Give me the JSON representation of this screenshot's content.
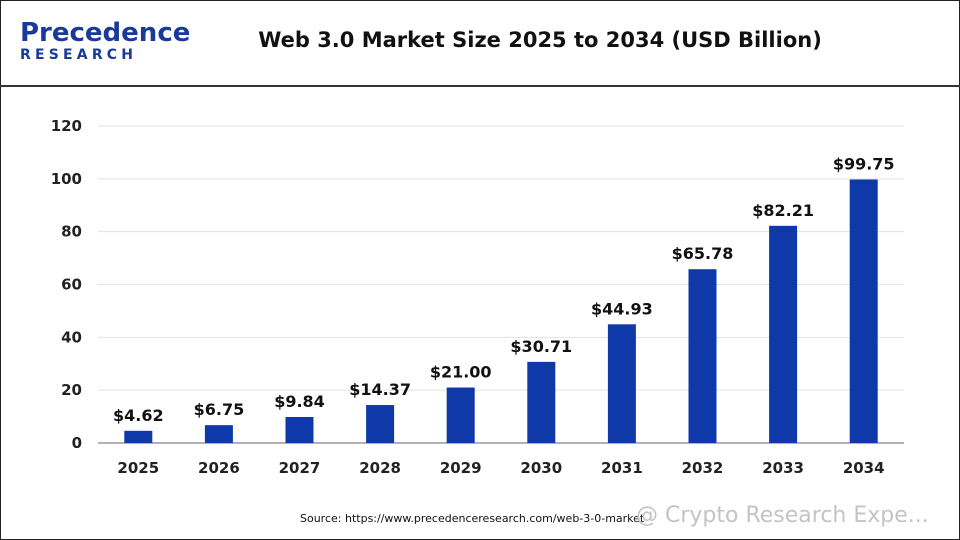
{
  "header": {
    "logo_top": "Precedence",
    "logo_bottom": "RESEARCH",
    "title": "Web 3.0 Market Size 2025 to 2034 (USD Billion)"
  },
  "footer": {
    "source": "Source: https://www.precedenceresearch.com/web-3-0-market",
    "watermark": "@ Crypto Research Expe..."
  },
  "colors": {
    "bar": "#0f38a8",
    "grid": "#e2e2e2",
    "axis": "#999999"
  },
  "chart_data": {
    "type": "bar",
    "title": "Web 3.0 Market Size 2025 to 2034 (USD Billion)",
    "categories": [
      "2025",
      "2026",
      "2027",
      "2028",
      "2029",
      "2030",
      "2031",
      "2032",
      "2033",
      "2034"
    ],
    "values": [
      4.62,
      6.75,
      9.84,
      14.37,
      21.0,
      30.71,
      44.93,
      65.78,
      82.21,
      99.75
    ],
    "value_labels": [
      "$4.62",
      "$6.75",
      "$9.84",
      "$14.37",
      "$21.00",
      "$30.71",
      "$44.93",
      "$65.78",
      "$82.21",
      "$99.75"
    ],
    "yticks": [
      "0",
      "20",
      "40",
      "60",
      "80",
      "100",
      "120"
    ],
    "ylim": [
      0,
      120
    ],
    "grid": true,
    "xlabel": "",
    "ylabel": ""
  }
}
